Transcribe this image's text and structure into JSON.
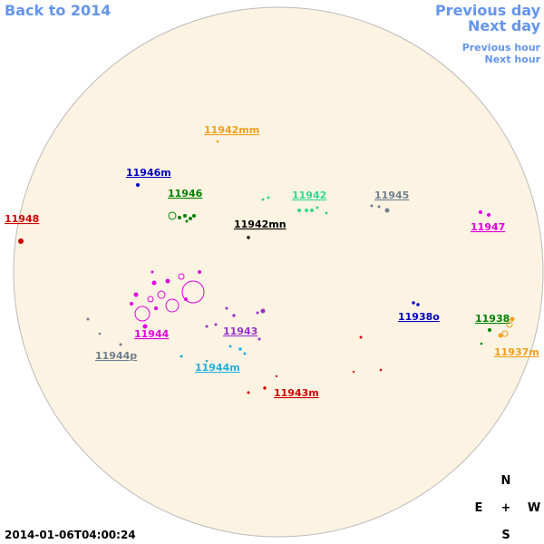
{
  "navigation": {
    "back": "Back to 2014",
    "previous_day": "Previous day",
    "next_day": "Next day",
    "previous_hour": "Previous hour",
    "next_hour": "Next hour"
  },
  "regions": [
    {
      "label": "11942mm",
      "color": "#f0a020"
    },
    {
      "label": "11946m",
      "color": "#0000c0"
    },
    {
      "label": "11946",
      "color": "#008000"
    },
    {
      "label": "11942",
      "color": "#30d890"
    },
    {
      "label": "11945",
      "color": "#708090"
    },
    {
      "label": "11948",
      "color": "#d00000"
    },
    {
      "label": "11942mn",
      "color": "#000000"
    },
    {
      "label": "11947",
      "color": "#e000e0"
    },
    {
      "label": "11938o",
      "color": "#0000c0"
    },
    {
      "label": "11938",
      "color": "#008000"
    },
    {
      "label": "11944",
      "color": "#e000e0"
    },
    {
      "label": "11943",
      "color": "#9932cc"
    },
    {
      "label": "11937m",
      "color": "#f0a020"
    },
    {
      "label": "11944p",
      "color": "#708090"
    },
    {
      "label": "11944m",
      "color": "#20b0e0"
    },
    {
      "label": "11943m",
      "color": "#d00000"
    }
  ],
  "compass": {
    "north": "N",
    "east": "E",
    "center": "+",
    "west": "W",
    "south": "S"
  },
  "timestamp": "2014-01-06T04:00:24"
}
